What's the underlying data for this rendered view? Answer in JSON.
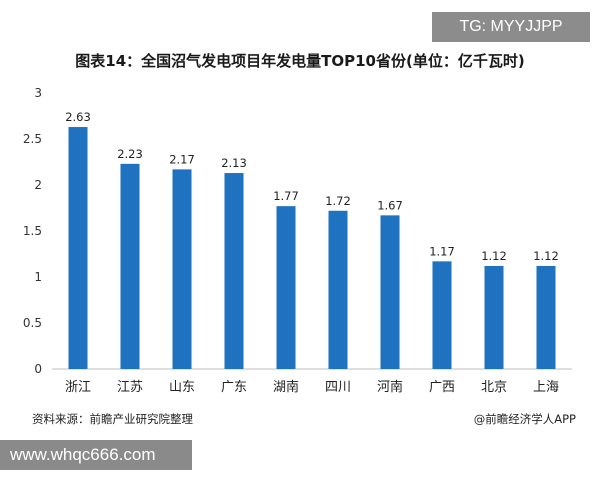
{
  "badge_top": "TG: MYYJJPP",
  "badge_bottom": "www.whqc666.com",
  "source": "资料来源：前瞻产业研究院整理",
  "credit": "@前瞻经济学人APP",
  "colors": {
    "bar": "#1f72bf",
    "axis": "#bfbfbf"
  },
  "chart_data": {
    "type": "bar",
    "title": "图表14：全国沼气发电项目年发电量TOP10省份(单位：亿千瓦时)",
    "categories": [
      "浙江",
      "江苏",
      "山东",
      "广东",
      "湖南",
      "四川",
      "河南",
      "广西",
      "北京",
      "上海"
    ],
    "values": [
      2.63,
      2.23,
      2.17,
      2.13,
      1.77,
      1.72,
      1.67,
      1.17,
      1.12,
      1.12
    ],
    "value_labels": [
      "2.63",
      "2.23",
      "2.17",
      "2.13",
      "1.77",
      "1.72",
      "1.67",
      "1.17",
      "1.12",
      "1.12"
    ],
    "yticks": [
      "0",
      "0.5",
      "1",
      "1.5",
      "2",
      "2.5",
      "3"
    ],
    "ylim": [
      0,
      3
    ],
    "xlabel": "",
    "ylabel": "",
    "grid": false
  }
}
